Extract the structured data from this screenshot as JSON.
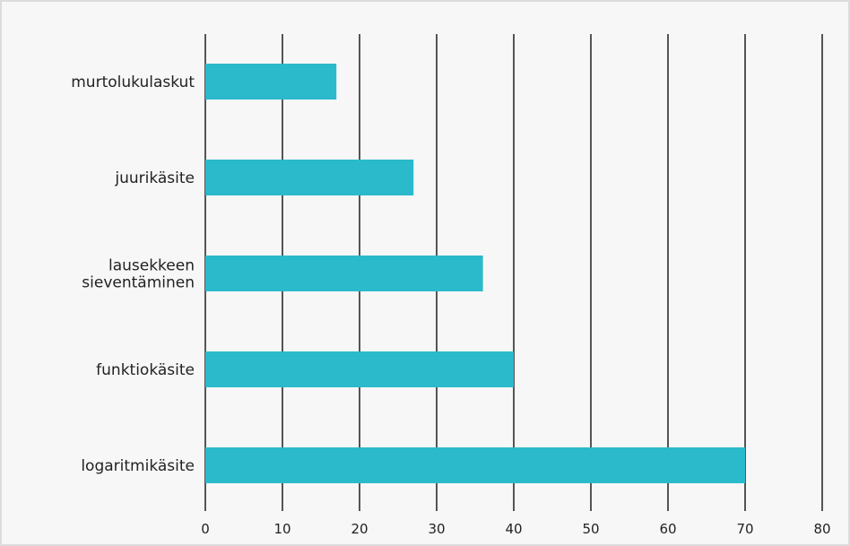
{
  "chart_data": {
    "type": "bar",
    "orientation": "horizontal",
    "categories": [
      [
        "murtolukulaskut"
      ],
      [
        "juurikäsite"
      ],
      [
        "lausekkeen",
        "sieventäminen"
      ],
      [
        "funktiokäsite"
      ],
      [
        "logaritmikäsite"
      ]
    ],
    "values": [
      17,
      27,
      36,
      40,
      70
    ],
    "xlim": [
      0,
      80
    ],
    "xticks": [
      0,
      10,
      20,
      30,
      40,
      50,
      60,
      70,
      80
    ],
    "grid": "vertical",
    "bar_color": "#2bb9cc",
    "grid_color": "#555555",
    "background_color": "#f7f7f7"
  }
}
